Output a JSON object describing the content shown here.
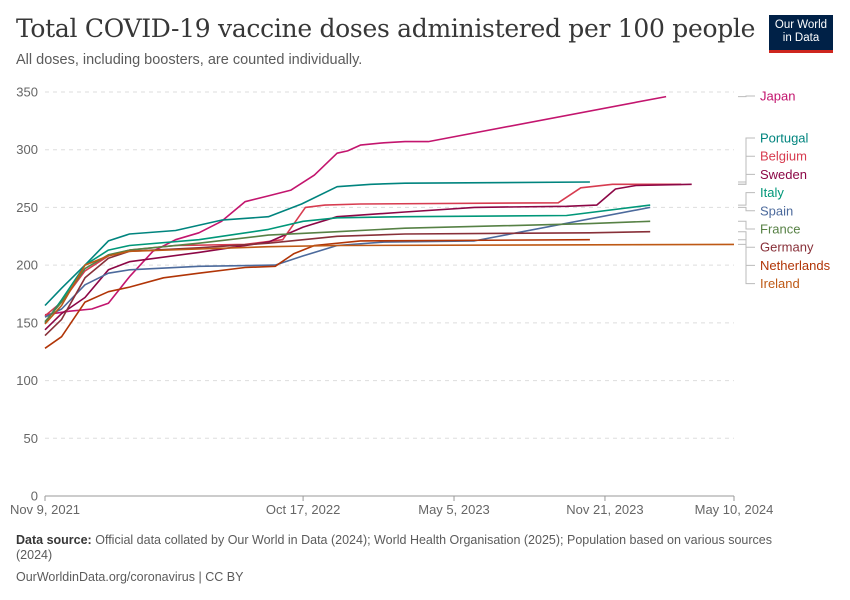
{
  "header": {
    "title": "Total COVID-19 vaccine doses administered per 100 people",
    "subtitle": "All doses, including boosters, are counted individually.",
    "logo_line1": "Our World",
    "logo_line2": "in Data"
  },
  "footer": {
    "source_label": "Data source:",
    "source_text": "Official data collated by Our World in Data (2024); World Health Organisation (2025); Population based on various sources (2024)",
    "credit": "OurWorldinData.org/coronavirus | CC BY"
  },
  "chart_data": {
    "type": "line",
    "title": "Total COVID-19 vaccine doses administered per 100 people",
    "subtitle": "All doses, including boosters, are counted individually.",
    "xlabel": "",
    "ylabel": "",
    "x_range": [
      "2021-11-09",
      "2024-05-10"
    ],
    "ylim": [
      0,
      350
    ],
    "y_ticks": [
      0,
      50,
      100,
      150,
      200,
      250,
      300,
      350
    ],
    "x_ticks": [
      {
        "date": "2021-11-09",
        "label": "Nov 9, 2021"
      },
      {
        "date": "2022-10-17",
        "label": "Oct 17, 2022"
      },
      {
        "date": "2023-05-05",
        "label": "May 5, 2023"
      },
      {
        "date": "2023-11-21",
        "label": "Nov 21, 2023"
      },
      {
        "date": "2024-05-10",
        "label": "May 10, 2024"
      }
    ],
    "grid": "horizontal dashed",
    "legend": "right, labels at line ends",
    "series": [
      {
        "name": "Japan",
        "color": "#c3156e",
        "points": [
          [
            "2021-11-09",
            157
          ],
          [
            "2021-12-10",
            160
          ],
          [
            "2022-01-10",
            162
          ],
          [
            "2022-02-01",
            167
          ],
          [
            "2022-03-01",
            190
          ],
          [
            "2022-04-01",
            212
          ],
          [
            "2022-05-01",
            222
          ],
          [
            "2022-06-01",
            228
          ],
          [
            "2022-07-01",
            238
          ],
          [
            "2022-08-01",
            255
          ],
          [
            "2022-09-01",
            260
          ],
          [
            "2022-10-01",
            265
          ],
          [
            "2022-11-01",
            278
          ],
          [
            "2022-12-01",
            297
          ],
          [
            "2022-12-15",
            299
          ],
          [
            "2023-01-01",
            304
          ],
          [
            "2023-02-01",
            306
          ],
          [
            "2023-03-01",
            307
          ],
          [
            "2023-04-01",
            307
          ],
          [
            "2024-02-10",
            346
          ]
        ]
      },
      {
        "name": "Portugal",
        "color": "#00847e",
        "points": [
          [
            "2021-11-09",
            165
          ],
          [
            "2021-12-01",
            180
          ],
          [
            "2022-01-01",
            200
          ],
          [
            "2022-02-01",
            221
          ],
          [
            "2022-03-01",
            227
          ],
          [
            "2022-05-01",
            230
          ],
          [
            "2022-07-01",
            239
          ],
          [
            "2022-09-01",
            242
          ],
          [
            "2022-10-15",
            253
          ],
          [
            "2022-12-01",
            268
          ],
          [
            "2023-01-15",
            270
          ],
          [
            "2023-03-01",
            271
          ],
          [
            "2023-11-01",
            272
          ]
        ]
      },
      {
        "name": "Belgium",
        "color": "#d73c50",
        "points": [
          [
            "2021-11-09",
            156
          ],
          [
            "2021-12-01",
            168
          ],
          [
            "2022-01-01",
            195
          ],
          [
            "2022-02-01",
            208
          ],
          [
            "2022-03-01",
            213
          ],
          [
            "2022-05-01",
            217
          ],
          [
            "2022-08-01",
            218
          ],
          [
            "2022-09-20",
            222
          ],
          [
            "2022-10-20",
            250
          ],
          [
            "2022-11-15",
            252
          ],
          [
            "2023-01-01",
            253
          ],
          [
            "2023-09-20",
            254
          ],
          [
            "2023-10-20",
            267
          ],
          [
            "2023-12-01",
            270
          ],
          [
            "2024-03-01",
            270
          ]
        ]
      },
      {
        "name": "Sweden",
        "color": "#8c0746",
        "points": [
          [
            "2021-11-09",
            144
          ],
          [
            "2021-12-01",
            158
          ],
          [
            "2022-01-01",
            172
          ],
          [
            "2022-02-01",
            196
          ],
          [
            "2022-03-01",
            203
          ],
          [
            "2022-06-01",
            211
          ],
          [
            "2022-09-01",
            220
          ],
          [
            "2022-10-17",
            233
          ],
          [
            "2022-12-01",
            242
          ],
          [
            "2023-03-01",
            246
          ],
          [
            "2023-06-01",
            250
          ],
          [
            "2023-10-01",
            251
          ],
          [
            "2023-11-10",
            252
          ],
          [
            "2023-12-05",
            266
          ],
          [
            "2024-01-01",
            269
          ],
          [
            "2024-03-15",
            270
          ]
        ]
      },
      {
        "name": "Italy",
        "color": "#009779",
        "points": [
          [
            "2021-11-09",
            150
          ],
          [
            "2021-12-01",
            170
          ],
          [
            "2022-01-01",
            200
          ],
          [
            "2022-02-01",
            213
          ],
          [
            "2022-03-01",
            217
          ],
          [
            "2022-06-01",
            222
          ],
          [
            "2022-09-01",
            231
          ],
          [
            "2022-10-17",
            238
          ],
          [
            "2022-12-01",
            241
          ],
          [
            "2023-03-01",
            242
          ],
          [
            "2023-10-01",
            243
          ],
          [
            "2024-01-20",
            252
          ]
        ]
      },
      {
        "name": "Spain",
        "color": "#4c6a9c",
        "points": [
          [
            "2021-11-09",
            155
          ],
          [
            "2021-12-01",
            162
          ],
          [
            "2022-01-01",
            183
          ],
          [
            "2022-02-01",
            193
          ],
          [
            "2022-03-01",
            196
          ],
          [
            "2022-06-01",
            199
          ],
          [
            "2022-09-10",
            200
          ],
          [
            "2022-10-17",
            208
          ],
          [
            "2022-12-01",
            217
          ],
          [
            "2023-02-01",
            220
          ],
          [
            "2023-06-01",
            221
          ],
          [
            "2024-01-20",
            250
          ]
        ]
      },
      {
        "name": "France",
        "color": "#578145",
        "points": [
          [
            "2021-11-09",
            151
          ],
          [
            "2021-12-01",
            168
          ],
          [
            "2022-01-01",
            197
          ],
          [
            "2022-02-01",
            209
          ],
          [
            "2022-03-01",
            213
          ],
          [
            "2022-06-01",
            219
          ],
          [
            "2022-09-01",
            226
          ],
          [
            "2022-12-01",
            229
          ],
          [
            "2023-03-01",
            232
          ],
          [
            "2023-11-01",
            236
          ],
          [
            "2024-01-20",
            238
          ]
        ]
      },
      {
        "name": "Germany",
        "color": "#883039",
        "points": [
          [
            "2021-11-09",
            139
          ],
          [
            "2021-12-01",
            153
          ],
          [
            "2022-01-01",
            189
          ],
          [
            "2022-02-01",
            206
          ],
          [
            "2022-03-01",
            212
          ],
          [
            "2022-06-01",
            215
          ],
          [
            "2022-09-01",
            219
          ],
          [
            "2022-12-01",
            225
          ],
          [
            "2023-03-01",
            227
          ],
          [
            "2023-11-01",
            228
          ],
          [
            "2024-01-20",
            229
          ]
        ]
      },
      {
        "name": "Netherlands",
        "color": "#b13507",
        "points": [
          [
            "2021-11-09",
            128
          ],
          [
            "2021-12-01",
            138
          ],
          [
            "2022-01-01",
            168
          ],
          [
            "2022-02-01",
            177
          ],
          [
            "2022-03-01",
            181
          ],
          [
            "2022-04-15",
            189
          ],
          [
            "2022-06-01",
            193
          ],
          [
            "2022-08-01",
            198
          ],
          [
            "2022-09-10",
            199
          ],
          [
            "2022-10-05",
            210
          ],
          [
            "2022-11-01",
            217
          ],
          [
            "2023-01-01",
            221
          ],
          [
            "2023-11-01",
            222
          ]
        ]
      },
      {
        "name": "Ireland",
        "color": "#be5915",
        "points": [
          [
            "2021-11-09",
            149
          ],
          [
            "2021-12-01",
            165
          ],
          [
            "2022-01-01",
            200
          ],
          [
            "2022-02-01",
            208
          ],
          [
            "2022-03-01",
            212
          ],
          [
            "2022-06-01",
            214
          ],
          [
            "2022-09-01",
            216
          ],
          [
            "2022-12-01",
            217
          ],
          [
            "2024-05-10",
            218
          ]
        ]
      }
    ],
    "legend_order": [
      "Japan",
      "Portugal",
      "Belgium",
      "Sweden",
      "Italy",
      "Spain",
      "France",
      "Germany",
      "Netherlands",
      "Ireland"
    ]
  }
}
